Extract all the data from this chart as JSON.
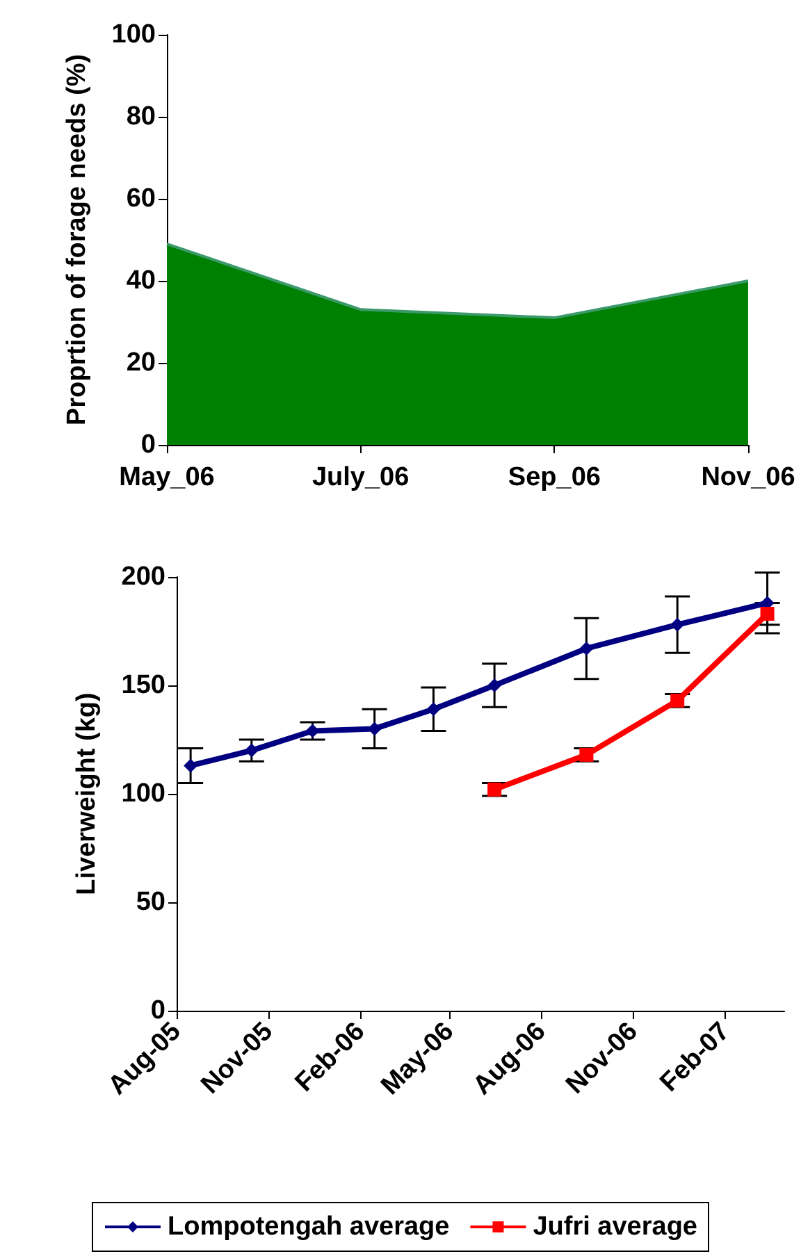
{
  "chart_data": [
    {
      "type": "area",
      "ylabel": "Proprtion of forage needs (%)",
      "categories": [
        "May_06",
        "July_06",
        "Sep_06",
        "Nov_06"
      ],
      "values": [
        49,
        33,
        31,
        40
      ],
      "color": "#008000",
      "ylim": [
        0,
        100
      ],
      "yticks": [
        0,
        20,
        40,
        60,
        80,
        100
      ],
      "grid": false,
      "legend": false
    },
    {
      "type": "line",
      "ylabel": "Liverweight (kg)",
      "xlim": [
        "2005-08-01",
        "2007-04-01"
      ],
      "xticks": [
        {
          "value": "2005-08-01",
          "label": "Aug-05"
        },
        {
          "value": "2005-11-01",
          "label": "Nov-05"
        },
        {
          "value": "2006-02-01",
          "label": "Feb-06"
        },
        {
          "value": "2006-05-01",
          "label": "May-06"
        },
        {
          "value": "2006-08-01",
          "label": "Aug-06"
        },
        {
          "value": "2006-11-01",
          "label": "Nov-06"
        },
        {
          "value": "2007-02-01",
          "label": "Feb-07"
        }
      ],
      "ylim": [
        0,
        200
      ],
      "yticks": [
        0,
        50,
        100,
        150,
        200
      ],
      "grid": false,
      "legend": "bottom",
      "line_style": "solid",
      "series": [
        {
          "name": "Lompotengah average",
          "color": "#000080",
          "marker": "diamond",
          "x": [
            "2005-08-15",
            "2005-10-15",
            "2005-12-15",
            "2006-02-15",
            "2006-04-15",
            "2006-06-15",
            "2006-09-15",
            "2006-12-15",
            "2007-03-15"
          ],
          "values": [
            113,
            120,
            129,
            130,
            139,
            150,
            167,
            178,
            188
          ],
          "errors": [
            8,
            5,
            4,
            9,
            10,
            10,
            14,
            13,
            14
          ]
        },
        {
          "name": "Jufri average",
          "color": "#ff0000",
          "marker": "square",
          "x": [
            "2006-06-15",
            "2006-09-15",
            "2006-12-15",
            "2007-03-15"
          ],
          "values": [
            102,
            118,
            143,
            183
          ],
          "errors": [
            3,
            3,
            3,
            5
          ]
        }
      ]
    }
  ]
}
